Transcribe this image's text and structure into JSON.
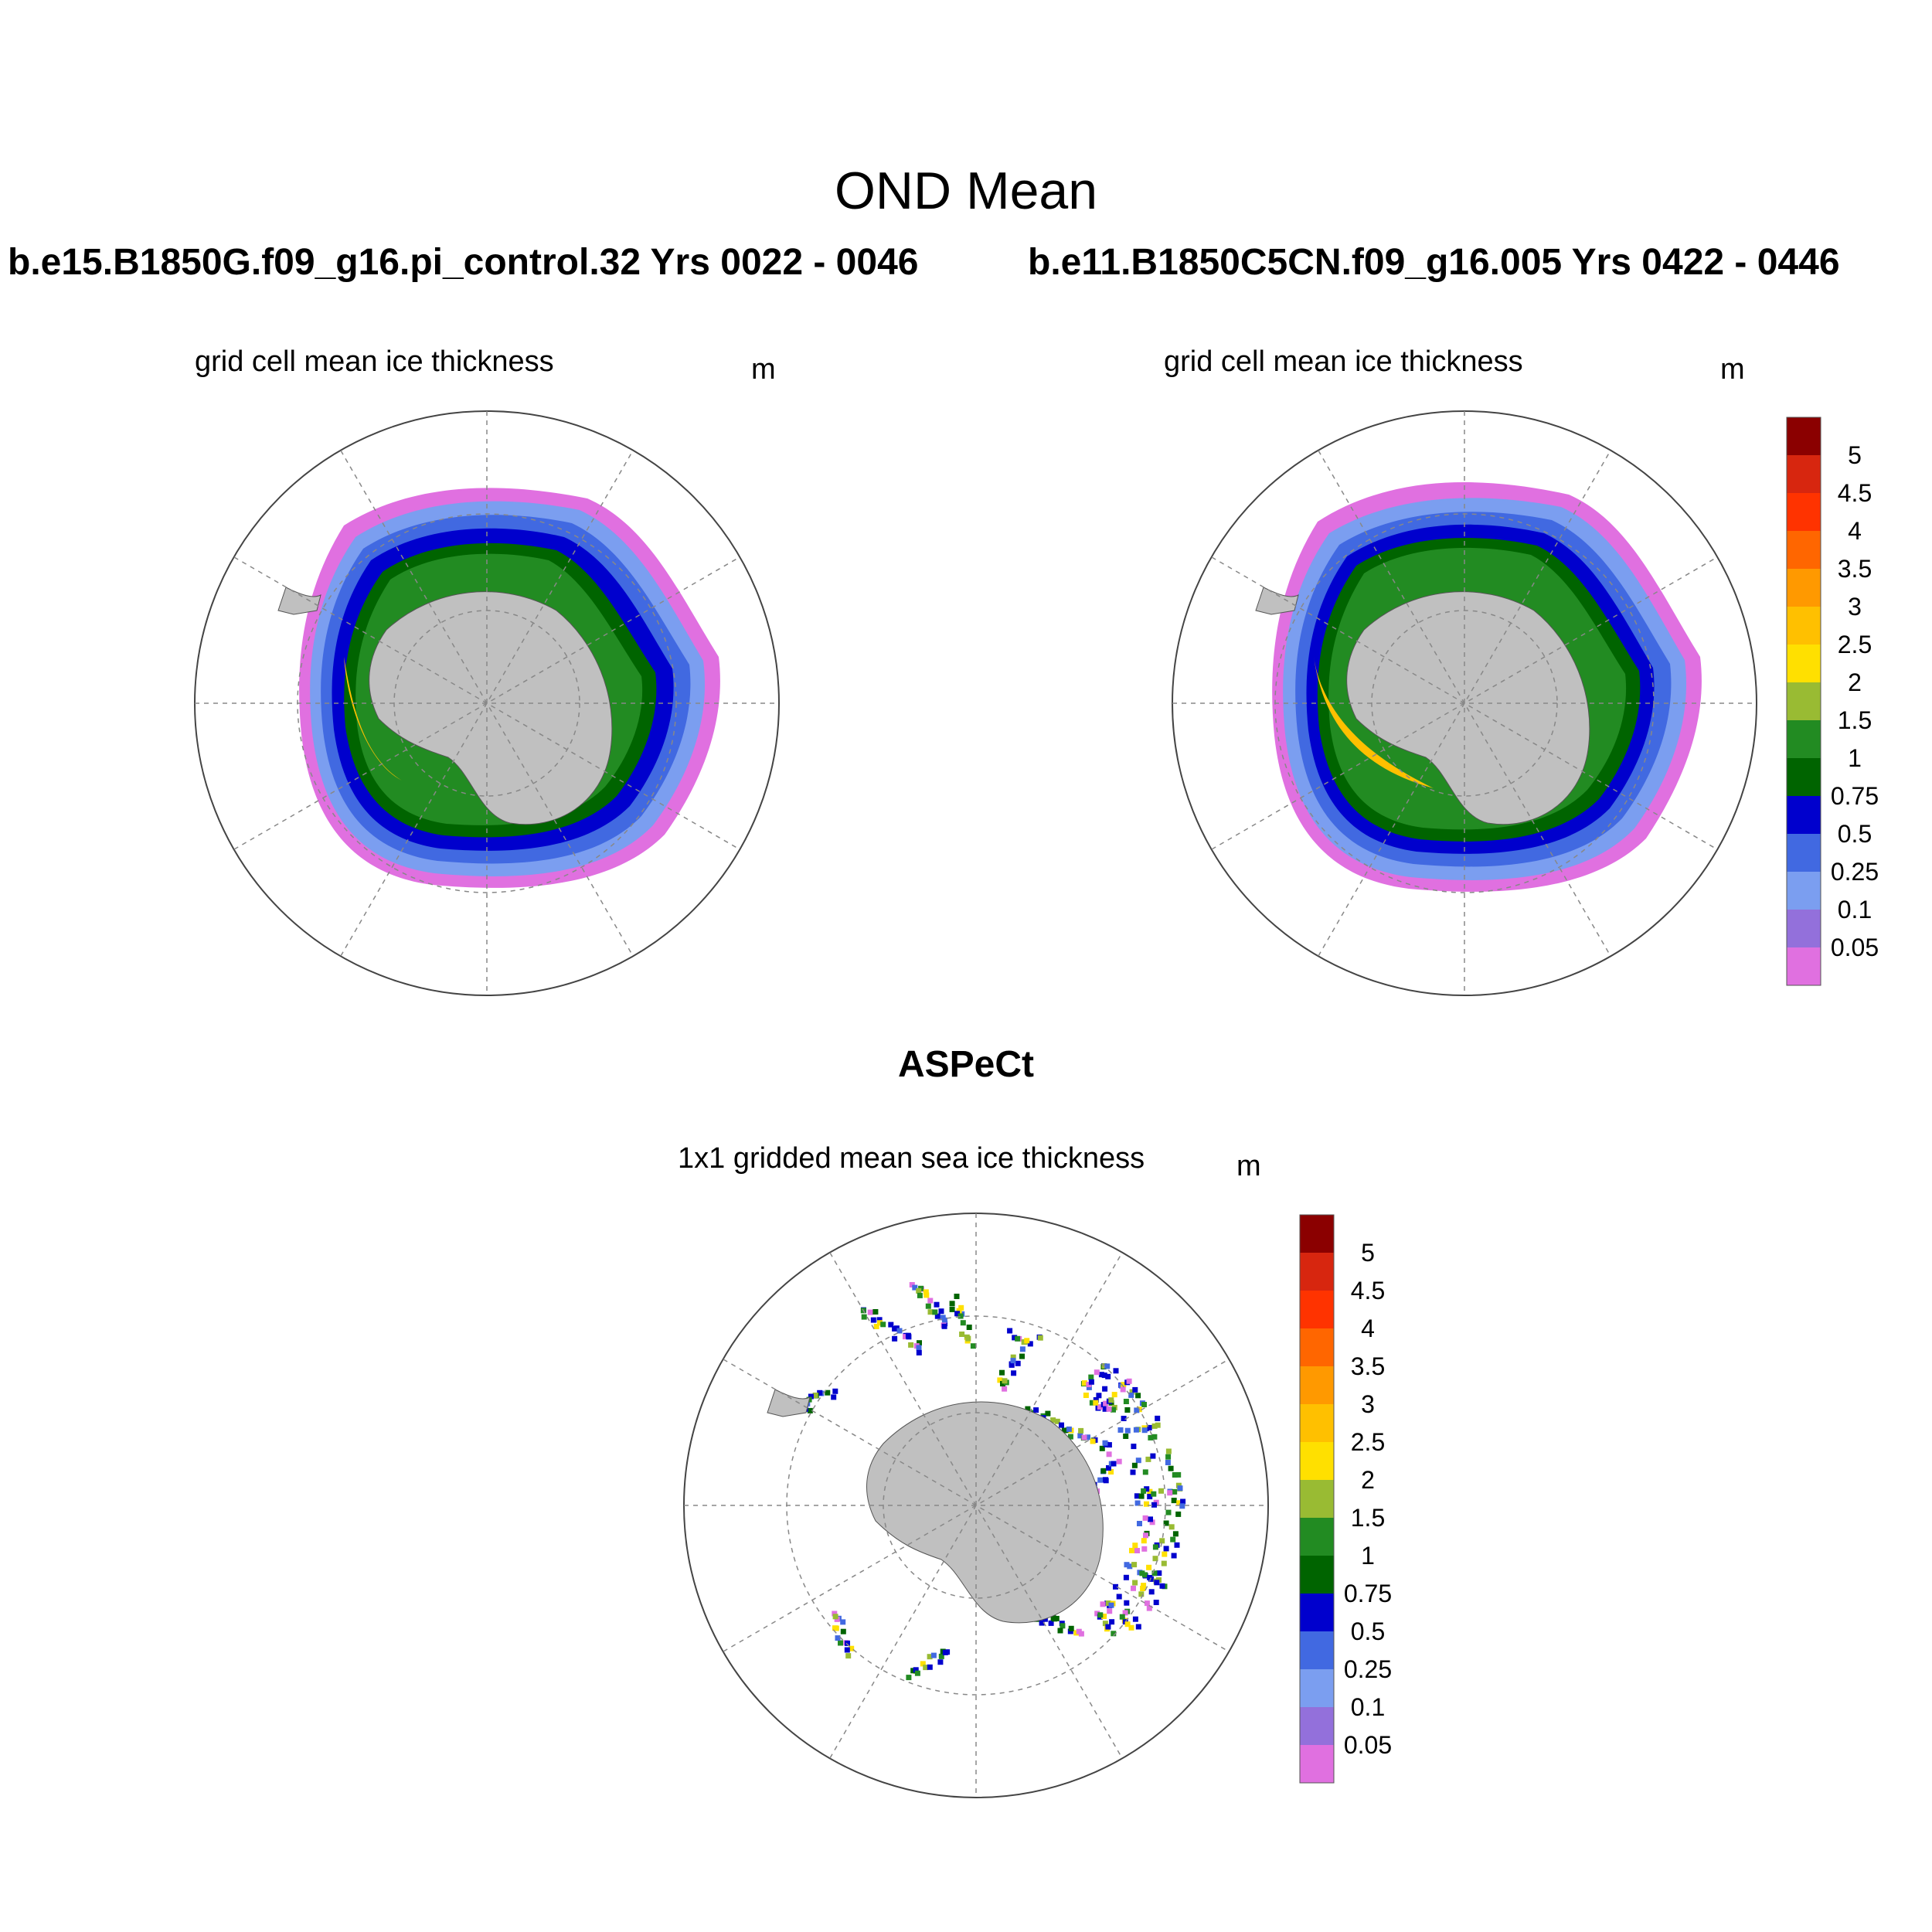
{
  "title": "OND Mean",
  "panels": [
    {
      "case": "b.e15.B1850G.f09_g16.pi_control.32  Yrs 0022 - 0046",
      "subtitle": "grid cell mean ice thickness",
      "units": "m"
    },
    {
      "case": "b.e11.B1850C5CN.f09_g16.005  Yrs 0422 - 0446",
      "subtitle": "grid cell mean ice thickness",
      "units": "m"
    },
    {
      "case": "ASPeCt",
      "subtitle": "1x1 gridded mean sea ice thickness",
      "units": "m"
    }
  ],
  "colorbar": {
    "labels": [
      "5",
      "4.5",
      "4",
      "3.5",
      "3",
      "2.5",
      "2",
      "1.5",
      "1",
      "0.75",
      "0.5",
      "0.25",
      "0.1",
      "0.05"
    ],
    "colors": [
      "#8b0000",
      "#d7260f",
      "#ff3300",
      "#ff6600",
      "#ff9900",
      "#ffc000",
      "#ffe000",
      "#99bb33",
      "#228b22",
      "#006400",
      "#0000cd",
      "#4169e1",
      "#7b9ef0",
      "#9370db",
      "#e070e0"
    ]
  },
  "colors": {
    "land": "#c0c0c0",
    "grid": "#888888"
  }
}
